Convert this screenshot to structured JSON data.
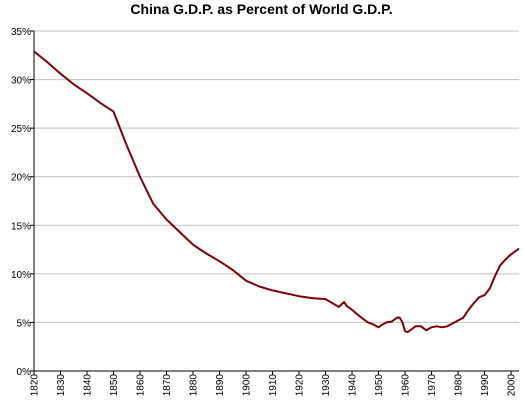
{
  "chart_data": {
    "type": "line",
    "title": "China G.D.P. as Percent of World G.D.P.",
    "xlabel": "",
    "ylabel": "",
    "xlim": [
      1820,
      2003
    ],
    "ylim": [
      0,
      35
    ],
    "y_ticks": [
      0,
      5,
      10,
      15,
      20,
      25,
      30,
      35
    ],
    "y_tick_labels": [
      "0%",
      "5%",
      "10%",
      "15%",
      "20%",
      "25%",
      "30%",
      "35%"
    ],
    "x_ticks": [
      1820,
      1830,
      1840,
      1850,
      1860,
      1870,
      1880,
      1890,
      1900,
      1910,
      1920,
      1930,
      1940,
      1950,
      1960,
      1970,
      1980,
      1990,
      2000
    ],
    "x_tick_labels": [
      "1820",
      "1830",
      "1840",
      "1850",
      "1860",
      "1870",
      "1880",
      "1890",
      "1900",
      "1910",
      "1920",
      "1930",
      "1940",
      "1950",
      "1960",
      "1970",
      "1980",
      "1990",
      "2000"
    ],
    "grid": true,
    "legend": "none",
    "series": [
      {
        "color": "#800000",
        "x": [
          1820,
          1825,
          1830,
          1835,
          1840,
          1845,
          1850,
          1855,
          1860,
          1865,
          1870,
          1875,
          1880,
          1885,
          1890,
          1895,
          1900,
          1905,
          1910,
          1915,
          1920,
          1925,
          1930,
          1935,
          1937,
          1938,
          1940,
          1943,
          1946,
          1948,
          1950,
          1951,
          1953,
          1955,
          1957,
          1958,
          1959,
          1960,
          1961,
          1962,
          1964,
          1966,
          1968,
          1970,
          1972,
          1974,
          1976,
          1978,
          1980,
          1982,
          1984,
          1986,
          1988,
          1990,
          1992,
          1994,
          1996,
          1998,
          2000,
          2003
        ],
        "values": [
          32.9,
          31.8,
          30.6,
          29.5,
          28.6,
          27.6,
          26.7,
          23.2,
          20.0,
          17.2,
          15.6,
          14.3,
          13.0,
          12.1,
          11.3,
          10.4,
          9.3,
          8.7,
          8.3,
          8.0,
          7.7,
          7.5,
          7.4,
          6.6,
          7.1,
          6.7,
          6.3,
          5.6,
          5.0,
          4.8,
          4.5,
          4.7,
          5.0,
          5.1,
          5.5,
          5.5,
          5.0,
          4.1,
          4.0,
          4.2,
          4.6,
          4.6,
          4.2,
          4.5,
          4.6,
          4.5,
          4.6,
          4.9,
          5.2,
          5.5,
          6.3,
          7.0,
          7.6,
          7.8,
          8.5,
          9.8,
          10.9,
          11.5,
          12.0,
          12.6
        ]
      }
    ]
  }
}
